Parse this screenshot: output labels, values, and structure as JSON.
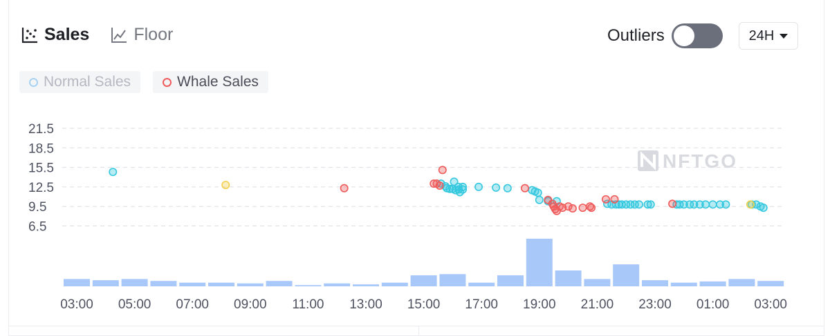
{
  "tabs": {
    "sales_label": "Sales",
    "floor_label": "Floor"
  },
  "controls": {
    "outliers_label": "Outliers",
    "outliers_enabled": false,
    "range_label": "24H"
  },
  "legend": {
    "normal_label": "Normal Sales",
    "whale_label": "Whale Sales"
  },
  "watermark": "NFTGO",
  "colors": {
    "normal": "#35c8df",
    "whale": "#ef5a5a",
    "highlight": "#f2cf4a",
    "volume": "#a8c8fa",
    "grid": "#dcdde2"
  },
  "chart_data": {
    "type": "scatter",
    "title": "",
    "xlabel": "",
    "ylabel": "",
    "ylim": [
      6.5,
      21.5
    ],
    "y_ticks": [
      "21.5",
      "18.5",
      "15.5",
      "12.5",
      "9.5",
      "6.5"
    ],
    "x_ticks": [
      "03:00",
      "05:00",
      "07:00",
      "09:00",
      "11:00",
      "13:00",
      "15:00",
      "17:00",
      "19:00",
      "21:00",
      "23:00",
      "01:00",
      "03:00"
    ],
    "x_unit": "hours since first tick (03:00)",
    "series": [
      {
        "name": "Normal Sales",
        "points": [
          [
            1.25,
            14.8
          ],
          [
            12.6,
            13.0
          ],
          [
            12.75,
            12.6
          ],
          [
            12.8,
            12.3
          ],
          [
            12.9,
            12.2
          ],
          [
            13.0,
            12.2
          ],
          [
            13.05,
            13.3
          ],
          [
            13.1,
            12.0
          ],
          [
            13.2,
            12.5
          ],
          [
            13.2,
            12.1
          ],
          [
            13.25,
            11.7
          ],
          [
            13.35,
            12.1
          ],
          [
            13.35,
            12.5
          ],
          [
            13.9,
            12.5
          ],
          [
            14.5,
            12.4
          ],
          [
            14.9,
            12.3
          ],
          [
            15.75,
            12.0
          ],
          [
            15.85,
            11.8
          ],
          [
            15.95,
            11.6
          ],
          [
            16.0,
            10.5
          ],
          [
            16.3,
            10.3
          ],
          [
            16.6,
            10.3
          ],
          [
            18.35,
            9.9
          ],
          [
            18.5,
            9.8
          ],
          [
            18.65,
            9.8
          ],
          [
            18.75,
            9.8
          ],
          [
            18.85,
            9.8
          ],
          [
            19.0,
            9.8
          ],
          [
            19.15,
            9.8
          ],
          [
            19.3,
            9.8
          ],
          [
            19.45,
            9.8
          ],
          [
            19.75,
            9.8
          ],
          [
            19.85,
            9.8
          ],
          [
            20.75,
            9.8
          ],
          [
            20.85,
            9.8
          ],
          [
            21.0,
            9.8
          ],
          [
            21.2,
            9.8
          ],
          [
            21.35,
            9.8
          ],
          [
            21.55,
            9.8
          ],
          [
            21.75,
            9.8
          ],
          [
            22.0,
            9.8
          ],
          [
            22.25,
            9.8
          ],
          [
            22.45,
            9.8
          ],
          [
            23.35,
            9.8
          ],
          [
            23.5,
            9.8
          ],
          [
            23.65,
            9.5
          ],
          [
            23.75,
            9.3
          ]
        ]
      },
      {
        "name": "Whale Sales",
        "points": [
          [
            9.25,
            12.3
          ],
          [
            12.35,
            13.0
          ],
          [
            12.45,
            13.0
          ],
          [
            12.55,
            12.7
          ],
          [
            12.65,
            15.1
          ],
          [
            15.5,
            12.3
          ],
          [
            16.3,
            10.5
          ],
          [
            16.45,
            9.9
          ],
          [
            16.5,
            9.5
          ],
          [
            16.55,
            9.1
          ],
          [
            16.6,
            8.8
          ],
          [
            16.7,
            9.5
          ],
          [
            16.8,
            9.3
          ],
          [
            17.0,
            9.5
          ],
          [
            17.15,
            9.2
          ],
          [
            17.5,
            9.3
          ],
          [
            17.75,
            9.5
          ],
          [
            17.8,
            9.3
          ],
          [
            18.3,
            10.6
          ],
          [
            18.6,
            10.6
          ],
          [
            20.6,
            9.9
          ]
        ]
      },
      {
        "name": "",
        "points": [
          [
            5.15,
            12.8
          ],
          [
            23.3,
            9.8
          ]
        ]
      }
    ],
    "volume_bars": [
      3,
      2.5,
      3,
      2.2,
      1.5,
      1.5,
      1.2,
      2.2,
      0.5,
      1.2,
      0.8,
      1.5,
      4.5,
      5,
      1.5,
      4.5,
      19.5,
      6.5,
      3,
      9,
      2.5,
      1.5,
      2,
      3,
      2.2
    ]
  }
}
